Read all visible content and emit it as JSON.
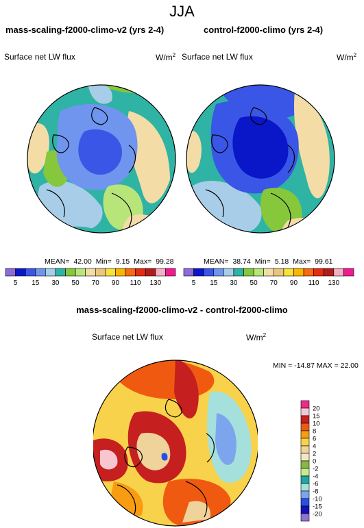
{
  "figure": {
    "season": "JJA",
    "difference_title": "mass-scaling-f2000-climo-v2 - control-f2000-climo"
  },
  "chart_data": [
    {
      "type": "heatmap",
      "title": "mass-scaling-f2000-climo-v2 (yrs 2-4)",
      "variable": "Surface net LW flux",
      "units": "W/m",
      "units_sup": "2",
      "projection": "north polar stereographic",
      "stats": {
        "mean_label": "MEAN=",
        "mean": "42.00",
        "min_label": "Min=",
        "min": "9.15",
        "max_label": "Max=",
        "max": "99.28"
      },
      "colorbar_labels": [
        "5",
        "15",
        "30",
        "50",
        "70",
        "90",
        "110",
        "130"
      ],
      "colors": [
        "#8d6bd8",
        "#0a17c8",
        "#3a56e6",
        "#6f95ee",
        "#a8cde8",
        "#2fb3a5",
        "#86c73c",
        "#b8e57a",
        "#f3dca6",
        "#e9c67b",
        "#f7e23c",
        "#fbb500",
        "#f56a12",
        "#e62b12",
        "#b01c1c",
        "#f3b0c5",
        "#f01b8e"
      ]
    },
    {
      "type": "heatmap",
      "title": "control-f2000-climo (yrs 2-4)",
      "variable": "Surface net LW flux",
      "units": "W/m",
      "units_sup": "2",
      "projection": "north polar stereographic",
      "stats": {
        "mean_label": "MEAN=",
        "mean": "38.74",
        "min_label": "Min=",
        "min": "5.18",
        "max_label": "Max=",
        "max": "99.61"
      },
      "colorbar_labels": [
        "5",
        "15",
        "30",
        "50",
        "70",
        "90",
        "110",
        "130"
      ],
      "colors": [
        "#8d6bd8",
        "#0a17c8",
        "#3a56e6",
        "#6f95ee",
        "#a8cde8",
        "#2fb3a5",
        "#86c73c",
        "#b8e57a",
        "#f3dca6",
        "#e9c67b",
        "#f7e23c",
        "#fbb500",
        "#f56a12",
        "#e62b12",
        "#b01c1c",
        "#f3b0c5",
        "#f01b8e"
      ]
    },
    {
      "type": "heatmap",
      "variable": "Surface net LW flux",
      "units": "W/m",
      "units_sup": "2",
      "projection": "north polar stereographic",
      "stats_text": "MIN = -14.87  MAX =  22.00",
      "colorbar_labels": [
        "20",
        "15",
        "10",
        "8",
        "6",
        "4",
        "2",
        "0",
        "-2",
        "-4",
        "-6",
        "-8",
        "-10",
        "-15",
        "-20"
      ],
      "colors": [
        "#ee2a8a",
        "#f8c6cf",
        "#c51f1f",
        "#f05a10",
        "#f89c12",
        "#f8d24a",
        "#efd39b",
        "#f3e7c6",
        "#8ab742",
        "#c7ec8e",
        "#1ea89f",
        "#a5e0dc",
        "#7da5ee",
        "#2850e6",
        "#1411b6",
        "#8f72d6"
      ]
    }
  ]
}
